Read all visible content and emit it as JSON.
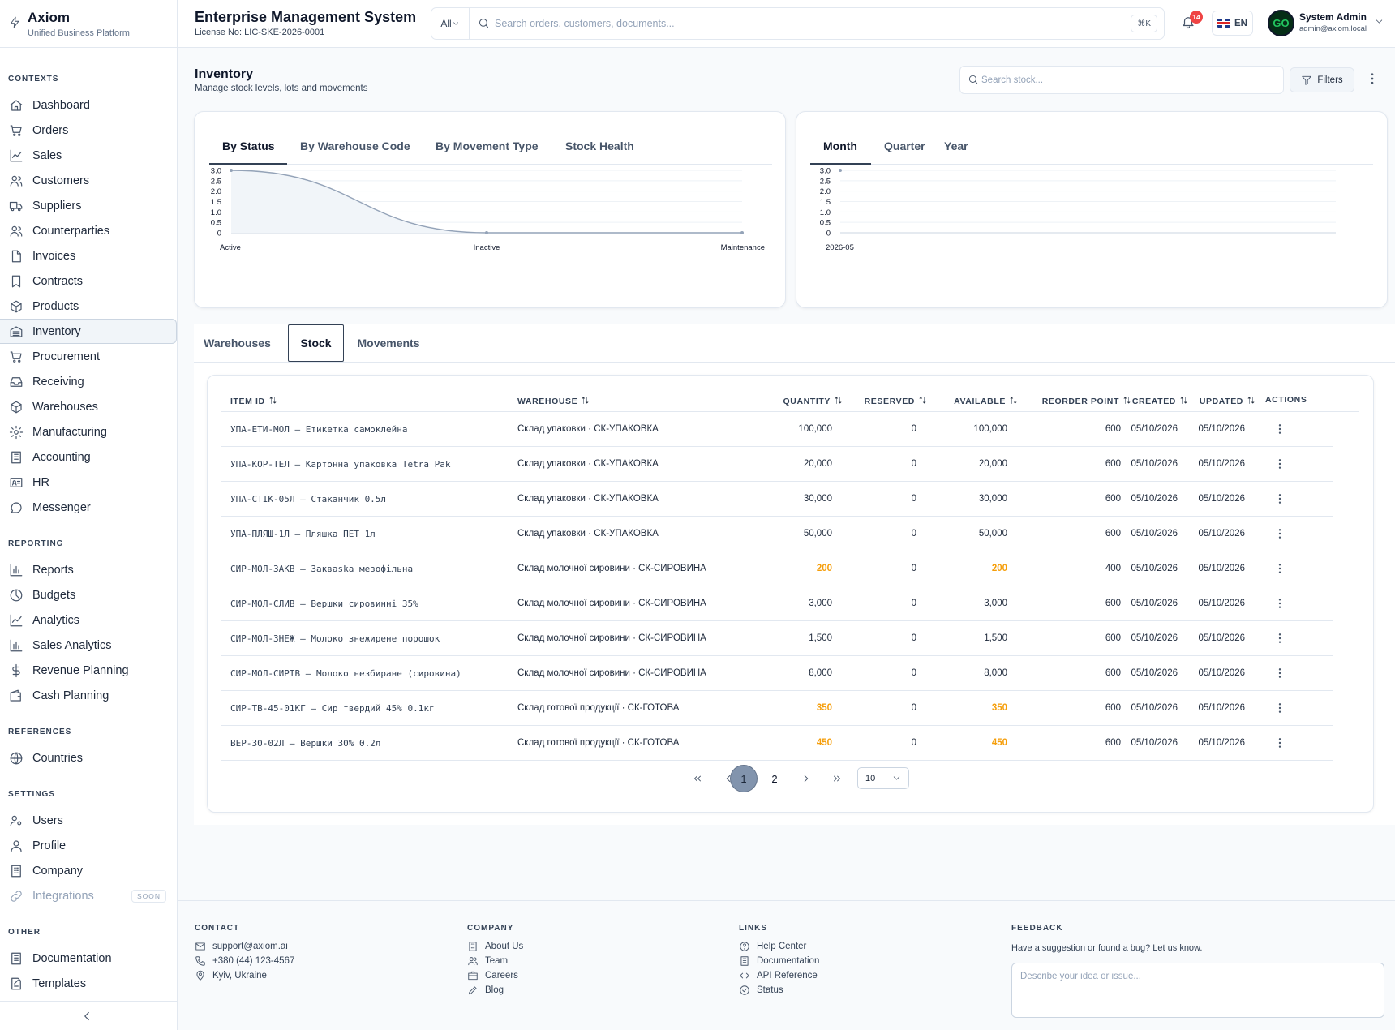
{
  "brand": {
    "name": "Axiom",
    "subtitle": "Unified Business Platform"
  },
  "sidebar": {
    "sections": [
      {
        "title": "CONTEXTS",
        "items": [
          {
            "label": "Dashboard",
            "icon": "home-icon"
          },
          {
            "label": "Orders",
            "icon": "cart-icon"
          },
          {
            "label": "Sales",
            "icon": "trend-icon"
          },
          {
            "label": "Customers",
            "icon": "users-icon"
          },
          {
            "label": "Suppliers",
            "icon": "truck-icon"
          },
          {
            "label": "Counterparties",
            "icon": "users-icon"
          },
          {
            "label": "Invoices",
            "icon": "file-icon"
          },
          {
            "label": "Contracts",
            "icon": "bookmark-icon"
          },
          {
            "label": "Products",
            "icon": "box-icon"
          },
          {
            "label": "Inventory",
            "icon": "warehouse-icon",
            "active": true
          },
          {
            "label": "Procurement",
            "icon": "cart-icon"
          },
          {
            "label": "Receiving",
            "icon": "inbox-icon"
          },
          {
            "label": "Warehouses",
            "icon": "box-icon"
          },
          {
            "label": "Manufacturing",
            "icon": "gear-icon"
          },
          {
            "label": "Accounting",
            "icon": "ledger-icon"
          },
          {
            "label": "HR",
            "icon": "id-card-icon"
          },
          {
            "label": "Messenger",
            "icon": "message-icon"
          }
        ]
      },
      {
        "title": "REPORTING",
        "items": [
          {
            "label": "Reports",
            "icon": "bar-chart-icon"
          },
          {
            "label": "Budgets",
            "icon": "pie-icon"
          },
          {
            "label": "Analytics",
            "icon": "trend-icon"
          },
          {
            "label": "Sales Analytics",
            "icon": "bar-chart-icon"
          },
          {
            "label": "Revenue Planning",
            "icon": "dollar-icon"
          },
          {
            "label": "Cash Planning",
            "icon": "wallet-icon"
          }
        ]
      },
      {
        "title": "REFERENCES",
        "items": [
          {
            "label": "Countries",
            "icon": "globe-icon"
          }
        ]
      },
      {
        "title": "SETTINGS",
        "items": [
          {
            "label": "Users",
            "icon": "user-gear-icon"
          },
          {
            "label": "Profile",
            "icon": "user-icon"
          },
          {
            "label": "Company",
            "icon": "building-icon"
          },
          {
            "label": "Integrations",
            "icon": "link-icon",
            "disabled": true,
            "badge": "SOON"
          }
        ]
      },
      {
        "title": "OTHER",
        "items": [
          {
            "label": "Documentation",
            "icon": "ledger-icon"
          },
          {
            "label": "Templates",
            "icon": "template-icon"
          }
        ]
      }
    ]
  },
  "header": {
    "title": "Enterprise Management System",
    "license": "License No: LIC-SKE-2026-0001",
    "search_scope": "All",
    "search_placeholder": "Search orders, customers, documents...",
    "search_shortcut": "⌘K",
    "notification_count": "14",
    "language": "EN",
    "user": {
      "name": "System Admin",
      "email": "admin@axiom.local",
      "avatar_initials": "GO"
    }
  },
  "page": {
    "title": "Inventory",
    "subtitle": "Manage stock levels, lots and movements",
    "search_placeholder": "Search stock...",
    "filters_label": "Filters"
  },
  "status_chart": {
    "tabs": [
      "By Status",
      "By Warehouse Code",
      "By Movement Type",
      "Stock Health"
    ],
    "active_tab": 0
  },
  "period_chart": {
    "tabs": [
      "Month",
      "Quarter",
      "Year"
    ],
    "active_tab": 0
  },
  "chart_data": [
    {
      "type": "area",
      "categories": [
        "Active",
        "Inactive",
        "Maintenance"
      ],
      "values": [
        3,
        0,
        0
      ],
      "ylim": [
        0,
        3
      ],
      "yticks": [
        "3.0",
        "2.5",
        "2.0",
        "1.5",
        "1.0",
        "0.5",
        "0"
      ],
      "grid": true,
      "color": "#94a3b8"
    },
    {
      "type": "line",
      "categories": [
        "2026-05"
      ],
      "values": [
        3
      ],
      "ylim": [
        0,
        3
      ],
      "yticks": [
        "3.0",
        "2.5",
        "2.0",
        "1.5",
        "1.0",
        "0.5",
        "0"
      ],
      "grid": true,
      "color": "#94a3b8"
    }
  ],
  "table_tabs": [
    "Warehouses",
    "Stock",
    "Movements"
  ],
  "table_active_tab": 1,
  "table": {
    "columns": [
      "ITEM ID",
      "WAREHOUSE",
      "QUANTITY",
      "RESERVED",
      "AVAILABLE",
      "REORDER POINT",
      "CREATED",
      "UPDATED",
      "ACTIONS"
    ],
    "rows": [
      {
        "item": "УПА-ЕТИ-МОЛ — Етикетка самоклейна",
        "warehouse": "Склад упаковки · СК-УПАКОВКА",
        "quantity": "100,000",
        "reserved": "0",
        "available": "100,000",
        "reorder": "600",
        "created": "05/10/2026",
        "updated": "05/10/2026",
        "low": false
      },
      {
        "item": "УПА-КОР-ТЕЛ — Картонна упаковка Tetra Pak",
        "warehouse": "Склад упаковки · СК-УПАКОВКА",
        "quantity": "20,000",
        "reserved": "0",
        "available": "20,000",
        "reorder": "600",
        "created": "05/10/2026",
        "updated": "05/10/2026",
        "low": false
      },
      {
        "item": "УПА-СТІК-05Л — Стаканчик 0.5л",
        "warehouse": "Склад упаковки · СК-УПАКОВКА",
        "quantity": "30,000",
        "reserved": "0",
        "available": "30,000",
        "reorder": "600",
        "created": "05/10/2026",
        "updated": "05/10/2026",
        "low": false
      },
      {
        "item": "УПА-ПЛЯШ-1Л — Пляшка ПЕТ 1л",
        "warehouse": "Склад упаковки · СК-УПАКОВКА",
        "quantity": "50,000",
        "reserved": "0",
        "available": "50,000",
        "reorder": "600",
        "created": "05/10/2026",
        "updated": "05/10/2026",
        "low": false
      },
      {
        "item": "СИР-МОЛ-ЗАКВ — Закваska мезофільна",
        "warehouse": "Склад молочної сировини · СК-СИРОВИНА",
        "quantity": "200",
        "reserved": "0",
        "available": "200",
        "reorder": "400",
        "created": "05/10/2026",
        "updated": "05/10/2026",
        "low": true
      },
      {
        "item": "СИР-МОЛ-СЛИВ — Вершки сировинні 35%",
        "warehouse": "Склад молочної сировини · СК-СИРОВИНА",
        "quantity": "3,000",
        "reserved": "0",
        "available": "3,000",
        "reorder": "600",
        "created": "05/10/2026",
        "updated": "05/10/2026",
        "low": false
      },
      {
        "item": "СИР-МОЛ-ЗНЕЖ — Молоко знежирене порошок",
        "warehouse": "Склад молочної сировини · СК-СИРОВИНА",
        "quantity": "1,500",
        "reserved": "0",
        "available": "1,500",
        "reorder": "600",
        "created": "05/10/2026",
        "updated": "05/10/2026",
        "low": false
      },
      {
        "item": "СИР-МОЛ-СИРІВ — Молоко незбиране (сировина)",
        "warehouse": "Склад молочної сировини · СК-СИРОВИНА",
        "quantity": "8,000",
        "reserved": "0",
        "available": "8,000",
        "reorder": "600",
        "created": "05/10/2026",
        "updated": "05/10/2026",
        "low": false
      },
      {
        "item": "СИР-ТВ-45-01КГ — Сир твердий 45% 0.1кг",
        "warehouse": "Склад готової продукції · СК-ГОТОВА",
        "quantity": "350",
        "reserved": "0",
        "available": "350",
        "reorder": "600",
        "created": "05/10/2026",
        "updated": "05/10/2026",
        "low": true
      },
      {
        "item": "ВЕР-30-02Л — Вершки 30% 0.2л",
        "warehouse": "Склад готової продукції · СК-ГОТОВА",
        "quantity": "450",
        "reserved": "0",
        "available": "450",
        "reorder": "600",
        "created": "05/10/2026",
        "updated": "05/10/2026",
        "low": true
      }
    ]
  },
  "pagination": {
    "pages": [
      "1",
      "2"
    ],
    "current": "1",
    "page_size": "10"
  },
  "footer": {
    "contact": {
      "title": "CONTACT",
      "items": [
        {
          "text": "support@axiom.ai",
          "icon": "mail-icon"
        },
        {
          "text": "+380 (44) 123-4567",
          "icon": "phone-icon"
        },
        {
          "text": "Kyiv, Ukraine",
          "icon": "pin-icon"
        }
      ]
    },
    "company": {
      "title": "COMPANY",
      "items": [
        {
          "text": "About Us",
          "icon": "building-icon"
        },
        {
          "text": "Team",
          "icon": "users-icon"
        },
        {
          "text": "Careers",
          "icon": "briefcase-icon"
        },
        {
          "text": "Blog",
          "icon": "pen-icon"
        }
      ]
    },
    "links": {
      "title": "LINKS",
      "items": [
        {
          "text": "Help Center",
          "icon": "help-icon"
        },
        {
          "text": "Documentation",
          "icon": "ledger-icon"
        },
        {
          "text": "API Reference",
          "icon": "code-icon"
        },
        {
          "text": "Status",
          "icon": "check-circle-icon"
        }
      ]
    },
    "feedback": {
      "title": "FEEDBACK",
      "text": "Have a suggestion or found a bug? Let us know.",
      "placeholder": "Describe your idea or issue..."
    }
  }
}
